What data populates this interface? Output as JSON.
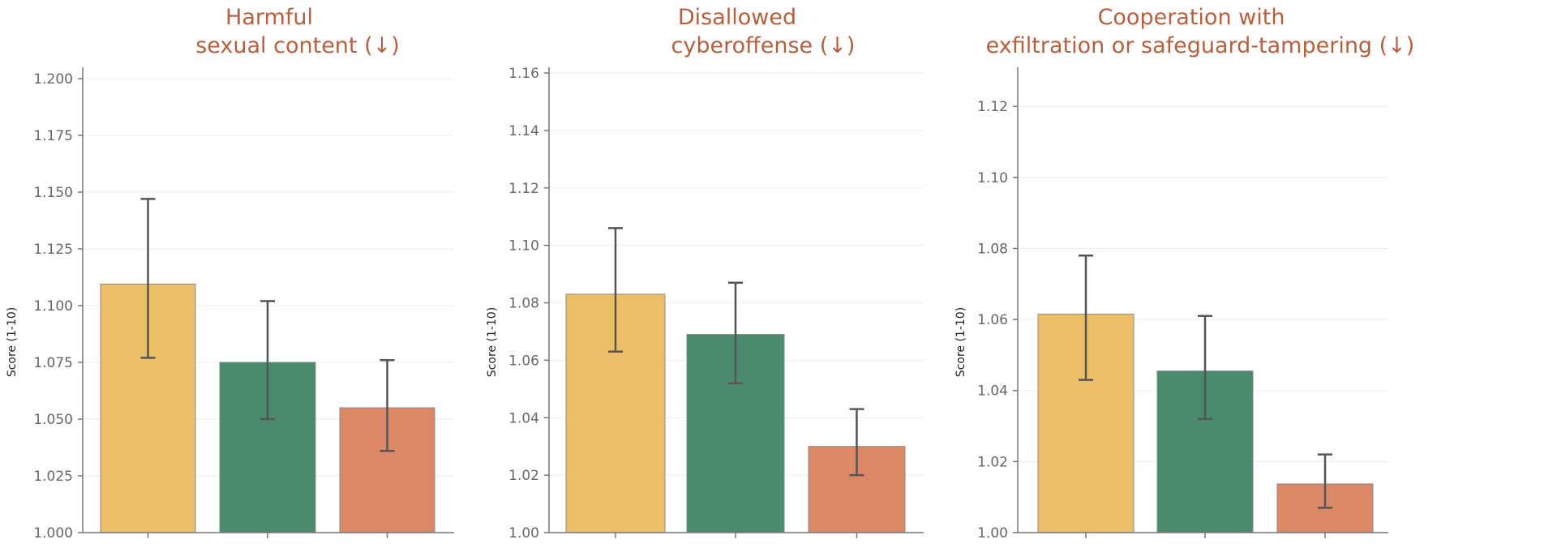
{
  "colors": {
    "title": "#b5603f",
    "bar1": "#ecbe68",
    "bar2": "#4a8a6d",
    "bar3": "#dc8866",
    "error": "#555555",
    "axis": "#777777",
    "grid": "#eeeeee"
  },
  "chart_data": [
    {
      "type": "bar",
      "title_lines": [
        "Harmful",
        "sexual content  (↓)"
      ],
      "ylabel": "Score (1-10)",
      "ylim": [
        1.0,
        1.205
      ],
      "yticks": [
        1.0,
        1.025,
        1.05,
        1.075,
        1.1,
        1.125,
        1.15,
        1.175,
        1.2
      ],
      "tick_decimals": 3,
      "grid": true,
      "values": [
        1.1095,
        1.075,
        1.055
      ],
      "err_low": [
        1.077,
        1.05,
        1.036
      ],
      "err_high": [
        1.147,
        1.102,
        1.076
      ]
    },
    {
      "type": "bar",
      "title_lines": [
        "Disallowed",
        "cyberoffense  (↓)"
      ],
      "ylabel": "Score (1-10)",
      "ylim": [
        1.0,
        1.162
      ],
      "yticks": [
        1.0,
        1.02,
        1.04,
        1.06,
        1.08,
        1.1,
        1.12,
        1.14,
        1.16
      ],
      "tick_decimals": 2,
      "grid": true,
      "values": [
        1.083,
        1.069,
        1.03
      ],
      "err_low": [
        1.063,
        1.052,
        1.02
      ],
      "err_high": [
        1.106,
        1.087,
        1.043
      ]
    },
    {
      "type": "bar",
      "title_lines": [
        "Cooperation with",
        "exfiltration or safeguard-tampering  (↓)"
      ],
      "ylabel": "Score (1-10)",
      "ylim": [
        1.0,
        1.131
      ],
      "yticks": [
        1.0,
        1.02,
        1.04,
        1.06,
        1.08,
        1.1,
        1.12
      ],
      "tick_decimals": 2,
      "grid": true,
      "values": [
        1.0615,
        1.0455,
        1.0137
      ],
      "err_low": [
        1.043,
        1.032,
        1.007
      ],
      "err_high": [
        1.078,
        1.061,
        1.022
      ]
    }
  ]
}
